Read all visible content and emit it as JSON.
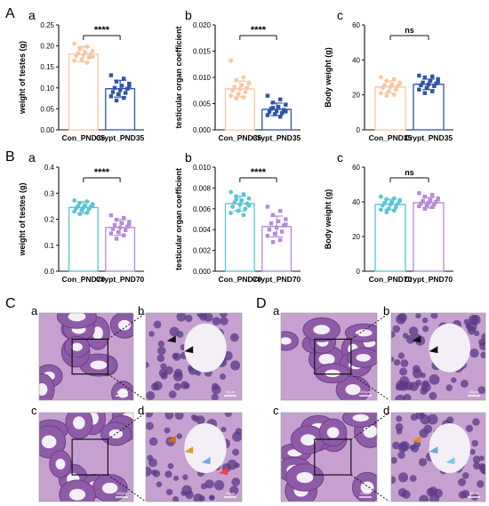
{
  "panel_letters": {
    "A": "A",
    "B": "B",
    "C": "C",
    "D": "D"
  },
  "colors": {
    "con35": "#f6c7a6",
    "crypt35": "#2f54a8",
    "con70": "#58c6d3",
    "crypt70": "#b58ad6",
    "he_bg": "#c6a1cf",
    "he_tubule": "#8e5ca7",
    "he_lumen": "#f4eef6"
  },
  "chart_data": [
    {
      "id": "A-a",
      "panel": "A",
      "sub": "a",
      "type": "bar",
      "ylabel": "weight of testes (g)",
      "categories": [
        "Con_PND35",
        "Crypt_PND35"
      ],
      "values": [
        0.18,
        0.098
      ],
      "errors": [
        0.018,
        0.02
      ],
      "ylim": [
        0,
        0.25
      ],
      "yticks": [
        "0.00",
        "0.05",
        "0.10",
        "0.15",
        "0.20",
        "0.25"
      ],
      "significance": "****",
      "points": [
        [
          0.205,
          0.198,
          0.192,
          0.188,
          0.185,
          0.182,
          0.18,
          0.178,
          0.176,
          0.172,
          0.168,
          0.165,
          0.16,
          0.195,
          0.174
        ],
        [
          0.13,
          0.122,
          0.115,
          0.11,
          0.105,
          0.1,
          0.098,
          0.095,
          0.09,
          0.088,
          0.085,
          0.08,
          0.076,
          0.07,
          0.102
        ]
      ]
    },
    {
      "id": "A-b",
      "panel": "A",
      "sub": "b",
      "type": "bar",
      "ylabel": "testicular organ coefficient",
      "categories": [
        "Con_PND35",
        "Crypt_PND35"
      ],
      "values": [
        0.0078,
        0.0039
      ],
      "errors": [
        0.0015,
        0.0012
      ],
      "ylim": [
        0,
        0.02
      ],
      "yticks": [
        "0.000",
        "0.005",
        "0.010",
        "0.015",
        "0.020"
      ],
      "significance": "****",
      "points": [
        [
          0.0132,
          0.01,
          0.0095,
          0.009,
          0.0085,
          0.0082,
          0.008,
          0.0078,
          0.0075,
          0.0072,
          0.0068,
          0.0065,
          0.0062,
          0.006,
          0.0088
        ],
        [
          0.0065,
          0.0058,
          0.0052,
          0.0048,
          0.0044,
          0.004,
          0.0038,
          0.0036,
          0.0034,
          0.0032,
          0.003,
          0.0028,
          0.0025,
          0.0042,
          0.0035
        ]
      ]
    },
    {
      "id": "A-c",
      "panel": "A",
      "sub": "c",
      "type": "bar",
      "ylabel": "Body weight (g)",
      "categories": [
        "Con_PND35",
        "Crypt_PND35"
      ],
      "values": [
        24.5,
        26.0
      ],
      "errors": [
        3.5,
        3.0
      ],
      "ylim": [
        0,
        60
      ],
      "yticks": [
        "0",
        "20",
        "40",
        "60"
      ],
      "significance": "ns",
      "points": [
        [
          30.0,
          29.0,
          28.0,
          27.0,
          26.0,
          25.5,
          25.0,
          24.5,
          24.0,
          23.0,
          22.0,
          21.0,
          20.0,
          19.5,
          26.5
        ],
        [
          31.0,
          30.5,
          30.0,
          29.0,
          28.0,
          27.0,
          26.5,
          26.0,
          25.5,
          25.0,
          24.0,
          23.0,
          22.0,
          21.0,
          27.5
        ]
      ]
    },
    {
      "id": "B-a",
      "panel": "B",
      "sub": "a",
      "type": "bar",
      "ylabel": "weight of testes (g)",
      "categories": [
        "Con_PND70",
        "Crypt_PND70"
      ],
      "values": [
        0.245,
        0.168
      ],
      "errors": [
        0.022,
        0.03
      ],
      "ylim": [
        0,
        0.4
      ],
      "yticks": [
        "0.0",
        "0.1",
        "0.2",
        "0.3",
        "0.4"
      ],
      "significance": "****",
      "points": [
        [
          0.272,
          0.268,
          0.262,
          0.258,
          0.252,
          0.25,
          0.248,
          0.245,
          0.242,
          0.238,
          0.235,
          0.23,
          0.225,
          0.22,
          0.255
        ],
        [
          0.215,
          0.205,
          0.198,
          0.19,
          0.185,
          0.178,
          0.172,
          0.168,
          0.162,
          0.158,
          0.15,
          0.145,
          0.138,
          0.125,
          0.18
        ]
      ]
    },
    {
      "id": "B-b",
      "panel": "B",
      "sub": "b",
      "type": "bar",
      "ylabel": "testicular organ coefficient",
      "categories": [
        "Con_PND70",
        "Crypt_PND70"
      ],
      "values": [
        0.0065,
        0.0043
      ],
      "errors": [
        0.0007,
        0.001
      ],
      "ylim": [
        0,
        0.01
      ],
      "yticks": [
        "0.000",
        "0.002",
        "0.004",
        "0.006",
        "0.008",
        "0.010"
      ],
      "significance": "****",
      "points": [
        [
          0.0076,
          0.0074,
          0.0072,
          0.007,
          0.0068,
          0.0066,
          0.0065,
          0.0064,
          0.0062,
          0.006,
          0.0058,
          0.0056,
          0.0054,
          0.0069,
          0.0063
        ],
        [
          0.0062,
          0.0058,
          0.0054,
          0.005,
          0.0048,
          0.0046,
          0.0044,
          0.0042,
          0.004,
          0.0038,
          0.0036,
          0.0034,
          0.003,
          0.0028,
          0.0045
        ]
      ]
    },
    {
      "id": "B-c",
      "panel": "B",
      "sub": "c",
      "type": "bar",
      "ylabel": "Body weight (g)",
      "categories": [
        "Con_PND70",
        "Crypt_PND70"
      ],
      "values": [
        38.5,
        39.5
      ],
      "errors": [
        3.0,
        3.0
      ],
      "ylim": [
        0,
        60
      ],
      "yticks": [
        "0",
        "20",
        "40",
        "60"
      ],
      "significance": "ns",
      "points": [
        [
          43.0,
          42.0,
          41.5,
          41.0,
          40.0,
          39.5,
          39.0,
          38.5,
          38.0,
          37.0,
          36.0,
          35.5,
          35.0,
          34.0,
          40.5
        ],
        [
          45.0,
          44.0,
          43.0,
          42.0,
          41.0,
          40.5,
          40.0,
          39.5,
          39.0,
          38.5,
          38.0,
          37.5,
          37.0,
          36.0,
          41.5
        ]
      ]
    }
  ],
  "micrographs": {
    "C": [
      {
        "sub": "a",
        "kind": "overview",
        "scale": "100μm"
      },
      {
        "sub": "b",
        "kind": "zoom",
        "scale": "20μm",
        "arrows": [
          "#111111",
          "#111111"
        ]
      },
      {
        "sub": "c",
        "kind": "overview",
        "scale": "100μm"
      },
      {
        "sub": "d",
        "kind": "zoom",
        "scale": "20μm",
        "arrows": [
          "#d2691e",
          "#e0a030",
          "#6fa8dc",
          "#ff3b3b"
        ]
      }
    ],
    "D": [
      {
        "sub": "a",
        "kind": "overview",
        "scale": "100μm"
      },
      {
        "sub": "b",
        "kind": "zoom",
        "scale": "20μm",
        "arrows": [
          "#111111",
          "#111111"
        ]
      },
      {
        "sub": "c",
        "kind": "overview",
        "scale": "100μm"
      },
      {
        "sub": "d",
        "kind": "zoom",
        "scale": "20μm",
        "arrows": [
          "#e08a2e",
          "#6fa8dc",
          "#7ec8e3"
        ]
      }
    ]
  }
}
